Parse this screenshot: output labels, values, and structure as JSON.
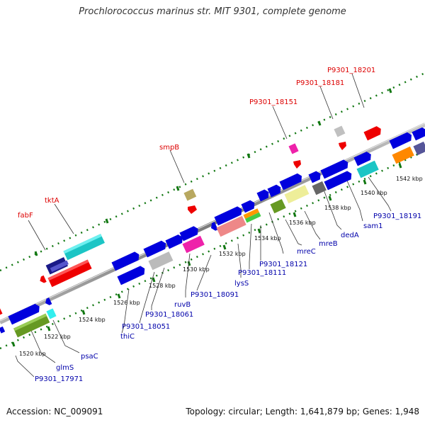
{
  "title": "Prochlorococcus marinus str. MIT 9301, complete genome",
  "accession": "Accession: NC_009091",
  "topology": "Topology: circular; Length: 1,641,879 bp; Genes: 1,948",
  "colors": {
    "top_label": "#dd0000",
    "bottom_label": "#0000aa",
    "tick": "#006600",
    "backbone": "#888888"
  },
  "kbp_labels": [
    "1520 kbp",
    "1522 kbp",
    "1524 kbp",
    "1526 kbp",
    "1528 kbp",
    "1530 kbp",
    "1532 kbp",
    "1534 kbp",
    "1536 kbp",
    "1538 kbp",
    "1540 kbp",
    "1542 kbp"
  ],
  "top_labels": [
    "fabF",
    "tktA",
    "smpB",
    "P9301_18151",
    "P9301_18181",
    "P9301_18201"
  ],
  "bottom_labels": [
    "P9301_17971",
    "glmS",
    "psaC",
    "thiC",
    "P9301_18051",
    "P9301_18061",
    "ruvB",
    "P9301_18091",
    "lysS",
    "P9301_18111",
    "P9301_18121",
    "mreC",
    "mreB",
    "dedA",
    "sam1",
    "P9301_18191"
  ]
}
